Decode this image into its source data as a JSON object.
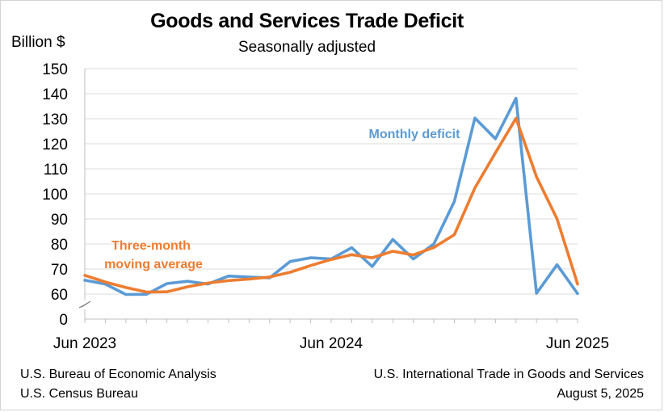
{
  "chart_data": {
    "type": "line",
    "title": "Goods and Services Trade Deficit",
    "subtitle": "Seasonally adjusted",
    "ylabel": "Billion $",
    "xlabel": "",
    "ylim": [
      0,
      150
    ],
    "axis_break": true,
    "y_ticks": [
      0,
      60,
      70,
      80,
      90,
      100,
      110,
      120,
      130,
      140,
      150
    ],
    "x_tick_labels": [
      {
        "index": 0,
        "label": "Jun 2023"
      },
      {
        "index": 12,
        "label": "Jun 2024"
      },
      {
        "index": 24,
        "label": "Jun 2025"
      }
    ],
    "x": [
      "Jun 2023",
      "Jul 2023",
      "Aug 2023",
      "Sep 2023",
      "Oct 2023",
      "Nov 2023",
      "Dec 2023",
      "Jan 2024",
      "Feb 2024",
      "Mar 2024",
      "Apr 2024",
      "May 2024",
      "Jun 2024",
      "Jul 2024",
      "Aug 2024",
      "Sep 2024",
      "Oct 2024",
      "Nov 2024",
      "Dec 2024",
      "Jan 2025",
      "Feb 2025",
      "Mar 2025",
      "Apr 2025",
      "May 2025",
      "Jun 2025"
    ],
    "grid": "horizontal",
    "series": [
      {
        "name": "Monthly deficit",
        "color": "#5B9BD5",
        "values": [
          65.5,
          64,
          59,
          59.5,
          64.2,
          65.1,
          64,
          67.2,
          66.8,
          66.5,
          73,
          74.5,
          74,
          78.5,
          71,
          81.8,
          74,
          80,
          97,
          130.3,
          122,
          138.2,
          60.3,
          71.7,
          60.2
        ]
      },
      {
        "name": "Three-month moving average",
        "color": "#ED7D31",
        "values": [
          67.5,
          64.8,
          62.6,
          60.8,
          60.9,
          62.9,
          64.4,
          65.4,
          66,
          66.8,
          68.7,
          71.4,
          73.8,
          75.7,
          74.5,
          77.1,
          75.6,
          78.6,
          83.7,
          102.4,
          116.4,
          130.2,
          106.8,
          90,
          64
        ]
      }
    ],
    "annotations": [
      {
        "text": "Monthly deficit",
        "series": 0
      },
      {
        "text": "Three-month moving average",
        "series": 1
      }
    ]
  },
  "footer": {
    "source_line1": "U.S. Bureau of Economic Analysis",
    "source_line2": "U.S. Census Bureau",
    "release_line1": "U.S. International Trade in Goods and Services",
    "release_line2": "August 5, 2025"
  }
}
